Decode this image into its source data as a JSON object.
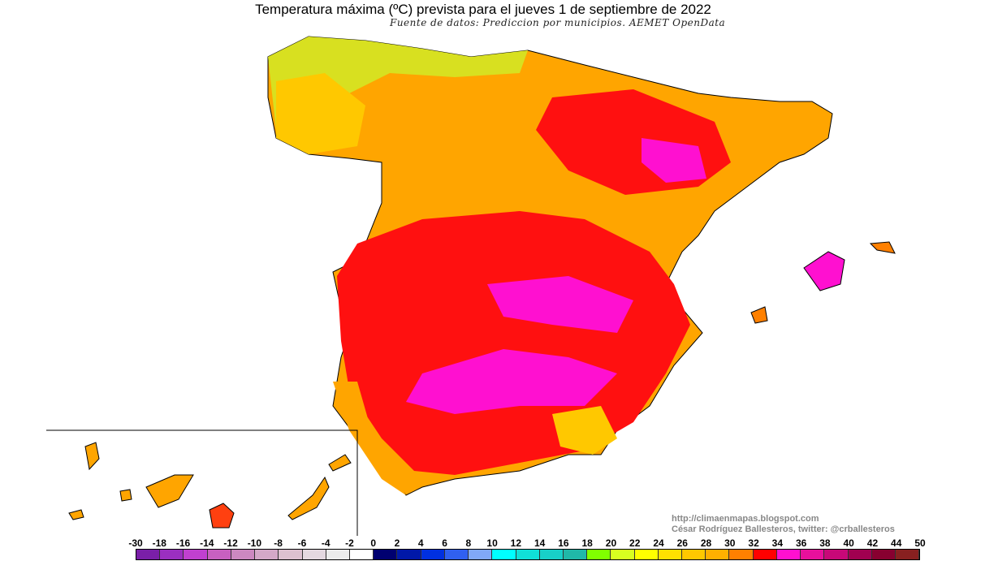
{
  "title": "Temperatura máxima (ºC) prevista para el jueves 1 de septiembre de 2022",
  "subtitle": "Fuente de datos: Prediccion por municipios. AEMET OpenData",
  "credits": {
    "url": "http://climaenmapas.blogspot.com",
    "author": "César Rodríguez Ballesteros, twitter: @crballesteros"
  },
  "legend": {
    "unit": "ºC",
    "labels": [
      "-30",
      "-18",
      "-16",
      "-14",
      "-12",
      "-10",
      "-8",
      "-6",
      "-4",
      "-2",
      "0",
      "2",
      "4",
      "6",
      "8",
      "10",
      "12",
      "14",
      "16",
      "18",
      "20",
      "22",
      "24",
      "26",
      "28",
      "30",
      "32",
      "34",
      "36",
      "38",
      "40",
      "42",
      "44",
      "50"
    ],
    "colors": [
      "#7a1fa8",
      "#9b2fc0",
      "#c040d0",
      "#c860c0",
      "#cc88c0",
      "#d4a8c8",
      "#dcc0d0",
      "#e4d8e0",
      "#ececec",
      "#ffffff",
      "#000070",
      "#0018a8",
      "#0030e0",
      "#3060f0",
      "#80a8f8",
      "#00ffff",
      "#10e0d8",
      "#18d0c8",
      "#20b8a8",
      "#80ff00",
      "#d8ff20",
      "#ffff00",
      "#ffe000",
      "#ffc800",
      "#ffb000",
      "#ff8000",
      "#ff0000",
      "#ff10d0",
      "#e8109c",
      "#c80878",
      "#a00050",
      "#880030",
      "#882020"
    ]
  },
  "map_colors": {
    "land_main": "#ffa500",
    "hot": "#ff1010",
    "very_hot": "#ff10d0",
    "mild": "#ffd000",
    "cool": "#d8ff20",
    "border": "#000000"
  },
  "region": "España peninsular, Baleares y Canarias"
}
